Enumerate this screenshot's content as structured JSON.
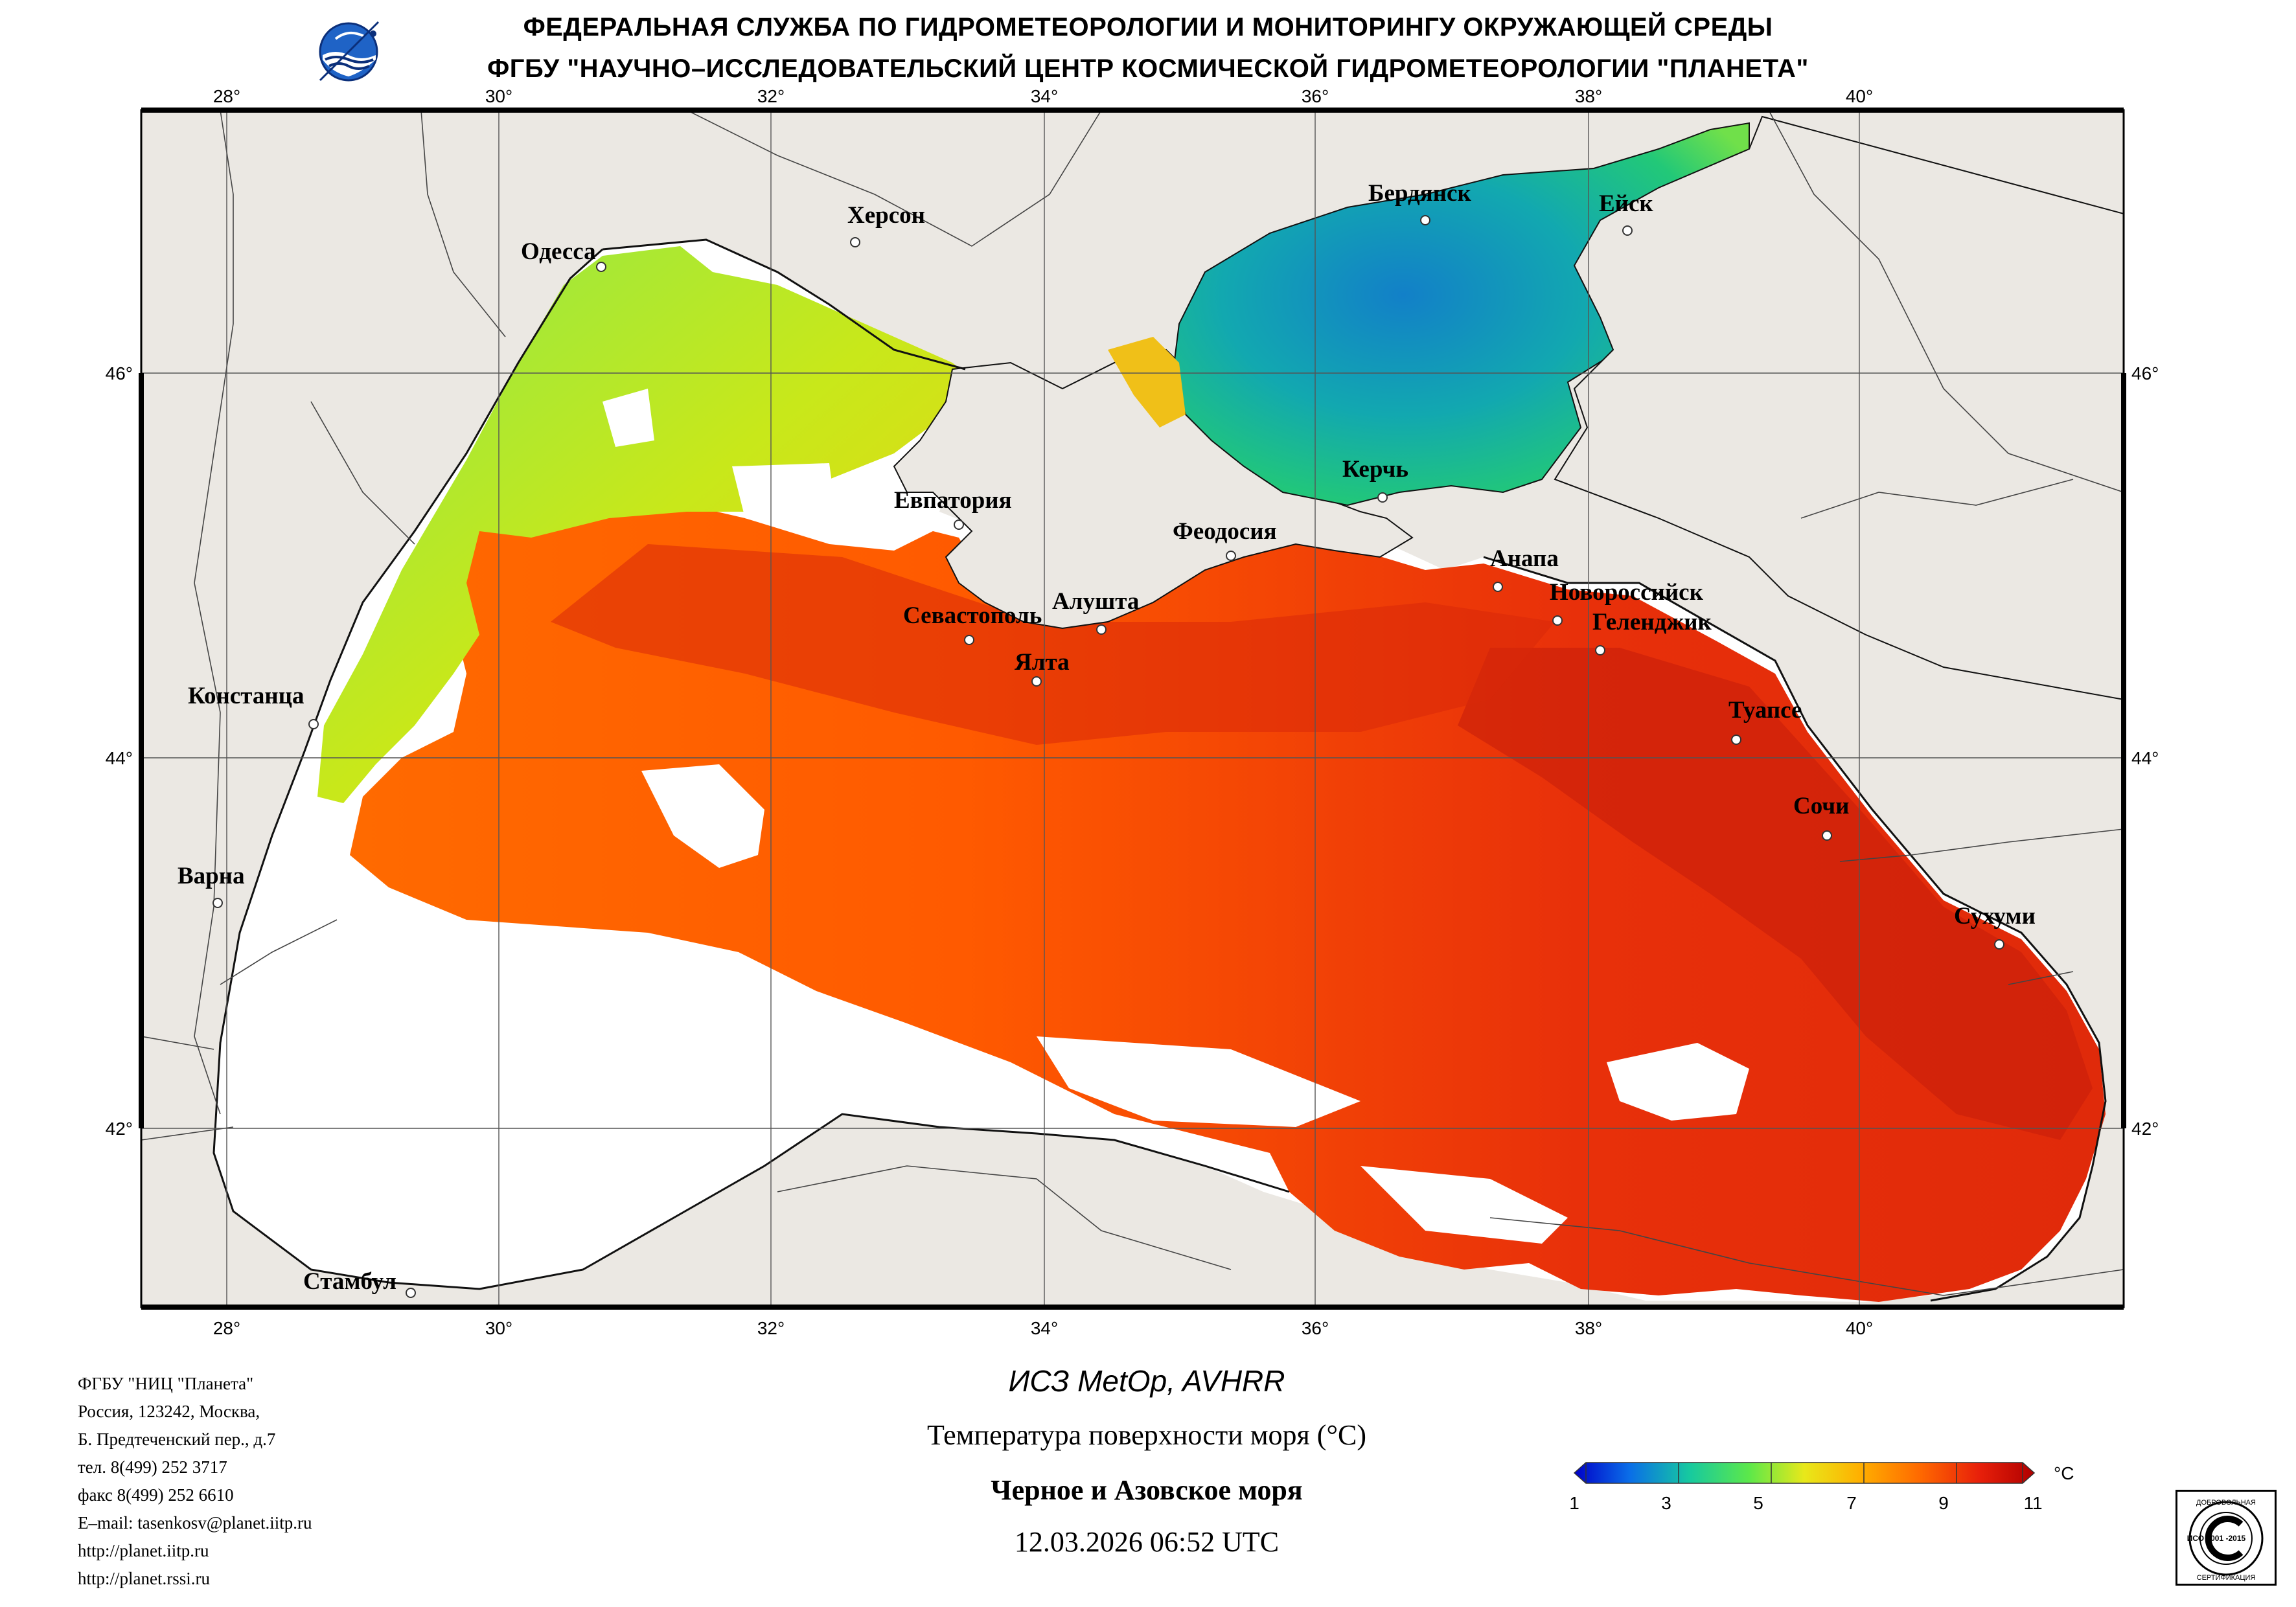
{
  "header": {
    "line1": "ФЕДЕРАЛЬНАЯ СЛУЖБА ПО ГИДРОМЕТЕОРОЛОГИИ И МОНИТОРИНГУ ОКРУЖАЮЩЕЙ СРЕДЫ",
    "line2": "ФГБУ \"НАУЧНО–ИССЛЕДОВАТЕЛЬСКИЙ ЦЕНТР КОСМИЧЕСКОЙ ГИДРОМЕТЕОРОЛОГИИ \"ПЛАНЕТА\""
  },
  "logo_icon": "planeta-globe-logo",
  "map": {
    "lon_labels": [
      "28°",
      "30°",
      "32°",
      "34°",
      "36°",
      "38°",
      "40°"
    ],
    "lat_labels": [
      "46°",
      "44°",
      "42°"
    ],
    "cities": {
      "odessa": "Одесса",
      "kherson": "Херсон",
      "berdyansk": "Бердянск",
      "yeysk": "Ейск",
      "yevpatoria": "Евпатория",
      "kerch": "Керчь",
      "feodosia": "Феодосия",
      "anapa": "Анапа",
      "sevastopol": "Севастополь",
      "alushta": "Алушта",
      "novorossiysk": "Новороссийск",
      "gelendzhik": "Геленджик",
      "yalta": "Ялта",
      "constanta": "Констанца",
      "tuapse": "Туапсе",
      "sochi": "Сочи",
      "varna": "Варна",
      "sukhumi": "Сухуми",
      "istanbul": "Стамбул"
    },
    "colors": {
      "land": "#ebe8e3",
      "no_data": "#ffffff",
      "grid": "#555555"
    }
  },
  "organization": {
    "name": "ФГБУ \"НИЦ \"Планета\"",
    "address_line1": "Россия, 123242, Москва,",
    "address_line2": "Б. Предтеченский пер., д.7",
    "phone": "тел. 8(499) 252 3717",
    "fax": "факс 8(499) 252 6610",
    "email": "E–mail: tasenkosv@planet.iitp.ru",
    "url1": "http://planet.iitp.ru",
    "url2": "http://planet.rssi.ru"
  },
  "product": {
    "satellite": "ИСЗ MetOp, AVHRR",
    "parameter": "Температура поверхности моря (°C)",
    "region": "Черное и Азовское моря",
    "datetime": "12.03.2026 06:52 UTC"
  },
  "colorbar": {
    "unit": "°C",
    "tick_labels": [
      "1",
      "3",
      "5",
      "7",
      "9",
      "11"
    ],
    "min": 1,
    "max": 11,
    "stops": [
      "#0000c8",
      "#0a6ee8",
      "#16c9a0",
      "#5ce84a",
      "#e8e81a",
      "#ffb000",
      "#ff6a00",
      "#e8200a",
      "#b00000"
    ]
  },
  "certificate": {
    "text_top": "ДОБРОВОЛЬНАЯ",
    "text_mid": "ИСО 9001 -2015",
    "text_bottom": "СЕРТИФИКАЦИЯ",
    "icon": "iso-certificate-icon"
  }
}
